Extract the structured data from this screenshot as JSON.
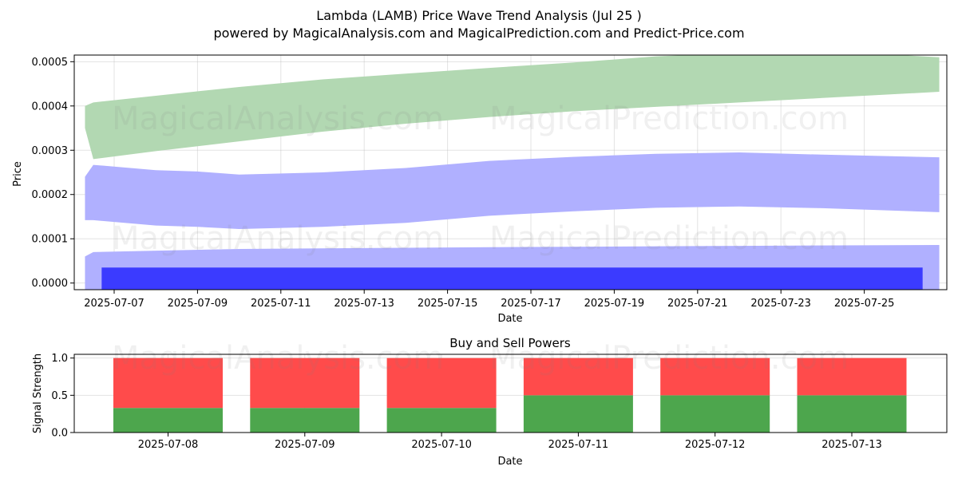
{
  "header": {
    "title": "Lambda (LAMB) Price Wave Trend Analysis (Jul 25 )",
    "subtitle": "powered by MagicalAnalysis.com and MagicalPrediction.com and Predict-Price.com"
  },
  "watermarks": [
    "MagicalAnalysis.com",
    "MagicalPrediction.com"
  ],
  "colors": {
    "upper_band": "#b2d8b2",
    "middle_band": "#b0b0ff",
    "lower_band": "#b0b0ff",
    "price_bar": "#3b3bff",
    "buy": "#4da64d",
    "sell": "#ff4b4b"
  },
  "chart_data": [
    {
      "type": "area",
      "xlabel": "Date",
      "ylabel": "Price",
      "ylim": [
        -1.5e-05,
        0.000515
      ],
      "yticks": [
        "0.0000",
        "0.0001",
        "0.0002",
        "0.0003",
        "0.0004",
        "0.0005"
      ],
      "xticks": [
        "2025-07-07",
        "2025-07-09",
        "2025-07-11",
        "2025-07-13",
        "2025-07-15",
        "2025-07-17",
        "2025-07-19",
        "2025-07-21",
        "2025-07-23",
        "2025-07-25"
      ],
      "grid": true,
      "bands": [
        {
          "x": [
            "2025-07-06.3",
            "2025-07-06.5",
            "2025-07-08",
            "2025-07-10",
            "2025-07-12",
            "2025-07-14",
            "2025-07-16",
            "2025-07-18",
            "2025-07-20",
            "2025-07-22",
            "2025-07-24",
            "2025-07-26.8"
          ],
          "upper": [
            0.0004,
            0.000408,
            0.000423,
            0.000443,
            0.00046,
            0.000473,
            0.000486,
            0.000498,
            0.000512,
            0.00052,
            0.000525,
            0.00051
          ],
          "lower": [
            0.00035,
            0.00028,
            0.000298,
            0.00032,
            0.000342,
            0.00036,
            0.000375,
            0.000388,
            0.000398,
            0.000408,
            0.000418,
            0.000432
          ]
        },
        {
          "x": [
            "2025-07-06.3",
            "2025-07-06.5",
            "2025-07-08",
            "2025-07-09",
            "2025-07-10",
            "2025-07-12",
            "2025-07-14",
            "2025-07-16",
            "2025-07-18",
            "2025-07-20",
            "2025-07-22",
            "2025-07-24",
            "2025-07-26.8"
          ],
          "upper": [
            0.00024,
            0.000267,
            0.000255,
            0.000252,
            0.000245,
            0.00025,
            0.00026,
            0.000276,
            0.000285,
            0.000292,
            0.000295,
            0.00029,
            0.000284
          ],
          "lower": [
            0.000142,
            0.000142,
            0.00013,
            0.000127,
            0.000122,
            0.000127,
            0.000136,
            0.000152,
            0.000162,
            0.00017,
            0.000173,
            0.000169,
            0.00016
          ]
        },
        {
          "x": [
            "2025-07-06.3",
            "2025-07-06.5",
            "2025-07-10",
            "2025-07-16",
            "2025-07-22",
            "2025-07-26.8"
          ],
          "upper": [
            6e-05,
            7e-05,
            7.7e-05,
            8.1e-05,
            8.4e-05,
            8.6e-05
          ],
          "lower": [
            -1.5e-05,
            -1.5e-05,
            -1.5e-05,
            -1.5e-05,
            -1.5e-05,
            -1.5e-05
          ]
        }
      ],
      "price_bar": {
        "x_start": "2025-07-06.7",
        "x_end": "2025-07-26.4",
        "value": 3.5e-05
      }
    },
    {
      "type": "bar",
      "title": "Buy and Sell Powers",
      "xlabel": "Date",
      "ylabel": "Signal Strength",
      "ylim": [
        0,
        1.05
      ],
      "yticks": [
        "0.0",
        "0.5",
        "1.0"
      ],
      "categories": [
        "2025-07-08",
        "2025-07-09",
        "2025-07-10",
        "2025-07-11",
        "2025-07-12",
        "2025-07-13"
      ],
      "stacked": true,
      "series": [
        {
          "values": [
            0.33,
            0.33,
            0.33,
            0.5,
            0.5,
            0.5
          ]
        },
        {
          "values": [
            0.67,
            0.67,
            0.67,
            0.5,
            0.5,
            0.5
          ]
        }
      ]
    }
  ]
}
